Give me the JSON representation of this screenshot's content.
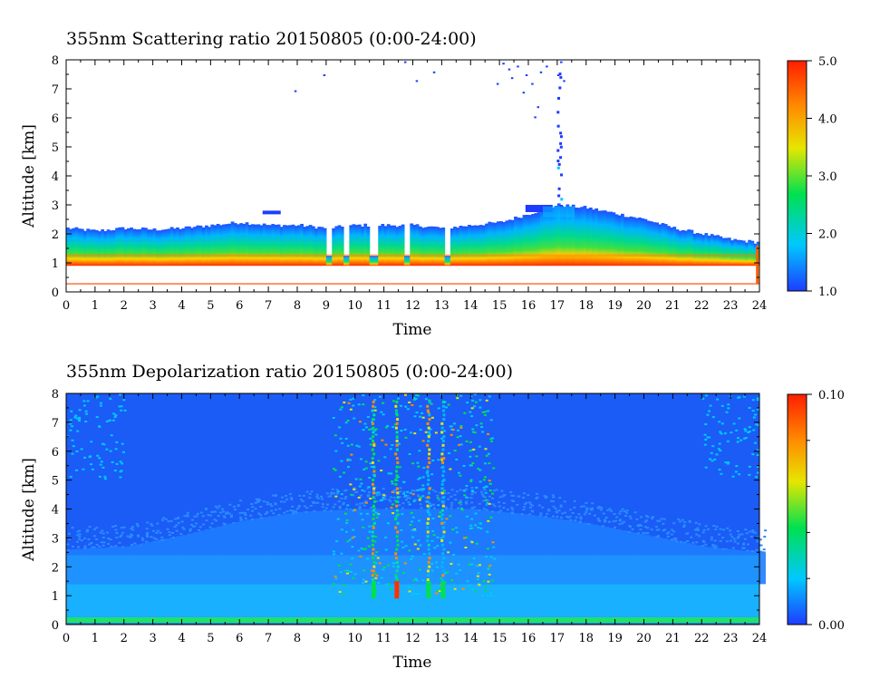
{
  "chart_data": [
    {
      "type": "heatmap",
      "title": "355nm Scattering ratio  20150805 (0:00-24:00)",
      "xlabel": "Time",
      "ylabel": "Altitude [km]",
      "xlim": [
        0,
        24
      ],
      "ylim": [
        0,
        8
      ],
      "x_ticks": [
        "0",
        "1",
        "2",
        "3",
        "4",
        "5",
        "6",
        "7",
        "8",
        "9",
        "10",
        "11",
        "12",
        "13",
        "14",
        "15",
        "16",
        "17",
        "18",
        "19",
        "20",
        "21",
        "22",
        "23",
        "24"
      ],
      "y_ticks": [
        "0",
        "1",
        "2",
        "3",
        "4",
        "5",
        "6",
        "7",
        "8"
      ],
      "colorbar": {
        "min": 1.0,
        "max": 5.0,
        "labels": [
          "1.0",
          "2.0",
          "3.0",
          "4.0",
          "5.0"
        ]
      },
      "colormap": [
        "#1e3cff",
        "#00c8ff",
        "#00e050",
        "#e6e600",
        "#ff8c00",
        "#ff1e00"
      ],
      "layer_top_km": [
        [
          0,
          2.2
        ],
        [
          1,
          2.1
        ],
        [
          2,
          2.2
        ],
        [
          3,
          2.15
        ],
        [
          4,
          2.2
        ],
        [
          5,
          2.3
        ],
        [
          6,
          2.4
        ],
        [
          7,
          2.3
        ],
        [
          8,
          2.3
        ],
        [
          9,
          2.2
        ],
        [
          10,
          2.3
        ],
        [
          11,
          2.3
        ],
        [
          12,
          2.3
        ],
        [
          13,
          2.2
        ],
        [
          14,
          2.3
        ],
        [
          15,
          2.4
        ],
        [
          16,
          2.7
        ],
        [
          17,
          3.0
        ],
        [
          18,
          2.9
        ],
        [
          19,
          2.7
        ],
        [
          20,
          2.5
        ],
        [
          21,
          2.2
        ],
        [
          22,
          2.0
        ],
        [
          23,
          1.8
        ],
        [
          24,
          1.7
        ]
      ],
      "layer_bottom_km": 0.9,
      "mixing_layer_top_km": 1.3
    },
    {
      "type": "heatmap",
      "title": "355nm Depolarization ratio  20150805 (0:00-24:00)",
      "xlabel": "Time",
      "ylabel": "Altitude [km]",
      "xlim": [
        0,
        24
      ],
      "ylim": [
        0,
        8
      ],
      "x_ticks": [
        "0",
        "1",
        "2",
        "3",
        "4",
        "5",
        "6",
        "7",
        "8",
        "9",
        "10",
        "11",
        "12",
        "13",
        "14",
        "15",
        "16",
        "17",
        "18",
        "19",
        "20",
        "21",
        "22",
        "23",
        "24"
      ],
      "y_ticks": [
        "0",
        "1",
        "2",
        "3",
        "4",
        "5",
        "6",
        "7",
        "8"
      ],
      "colorbar": {
        "min": 0.0,
        "max": 0.1,
        "labels": [
          "0.00",
          "0.10"
        ]
      },
      "colormap": [
        "#1e3cff",
        "#00c8ff",
        "#00e050",
        "#e6e600",
        "#ff8c00",
        "#ff1e00"
      ],
      "background_top_km": [
        [
          0,
          2.6
        ],
        [
          2,
          2.7
        ],
        [
          4,
          3.1
        ],
        [
          6,
          3.6
        ],
        [
          8,
          3.9
        ],
        [
          10,
          4.0
        ],
        [
          12,
          4.0
        ],
        [
          14,
          4.0
        ],
        [
          16,
          3.8
        ],
        [
          18,
          3.5
        ],
        [
          20,
          3.1
        ],
        [
          22,
          2.7
        ],
        [
          24,
          2.5
        ]
      ],
      "near_surface_layer_top_km": 1.4,
      "plumes_hour": [
        10.6,
        11.4,
        12.5,
        13.0
      ]
    }
  ]
}
